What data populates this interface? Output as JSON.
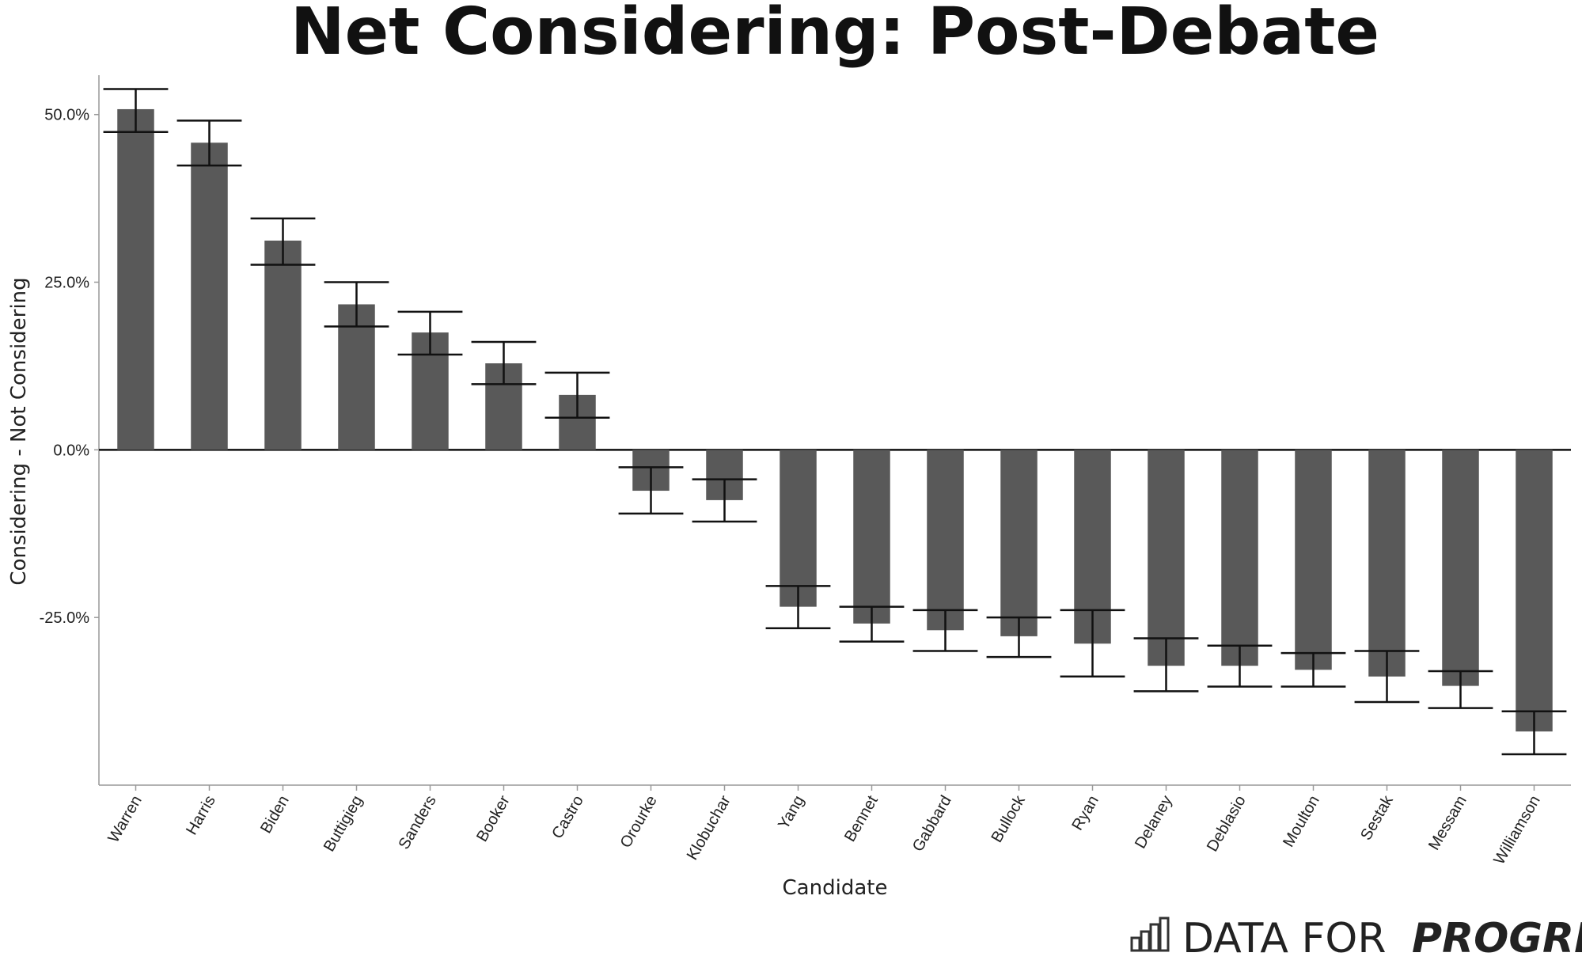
{
  "chart_data": {
    "type": "bar",
    "title": "Net Considering: Post-Debate",
    "xlabel": "Candidate",
    "ylabel": "Considering - Not Considering",
    "ylim": [
      -50,
      60
    ],
    "yticks": [
      50,
      25,
      0,
      -25
    ],
    "ytick_labels": [
      "50.0%",
      "25.0%",
      "0.0%",
      "-25.0%"
    ],
    "bar_color": "#595959",
    "error_color": "#111111",
    "categories": [
      "Warren",
      "Harris",
      "Biden",
      "Buttigieg",
      "Sanders",
      "Booker",
      "Castro",
      "Orourke",
      "Klobuchar",
      "Yang",
      "Bennet",
      "Gabbard",
      "Bullock",
      "Ryan",
      "Delaney",
      "Deblasio",
      "Moulton",
      "Sestak",
      "Messam",
      "Williamson"
    ],
    "values": [
      50.8,
      45.8,
      31.2,
      21.7,
      17.5,
      12.9,
      8.2,
      -6.1,
      -7.5,
      -23.4,
      -25.9,
      -26.9,
      -27.8,
      -28.9,
      -32.2,
      -32.2,
      -32.8,
      -33.8,
      -35.2,
      -42.0
    ],
    "error_low": [
      47.4,
      42.4,
      27.6,
      18.4,
      14.2,
      9.8,
      4.8,
      -9.5,
      -10.7,
      -26.6,
      -28.6,
      -30.0,
      -30.9,
      -33.8,
      -36.0,
      -35.3,
      -35.3,
      -37.6,
      -38.5,
      -45.4
    ],
    "error_high": [
      53.8,
      49.1,
      34.5,
      25.0,
      20.6,
      16.1,
      11.5,
      -2.6,
      -4.4,
      -20.3,
      -23.4,
      -23.9,
      -25.0,
      -23.9,
      -28.1,
      -29.2,
      -30.3,
      -30.0,
      -33.0,
      -39.0
    ]
  },
  "brand": {
    "text_light": "DATA FOR",
    "text_bold": "PROGRESS",
    "icon": "bar-chart-icon"
  }
}
